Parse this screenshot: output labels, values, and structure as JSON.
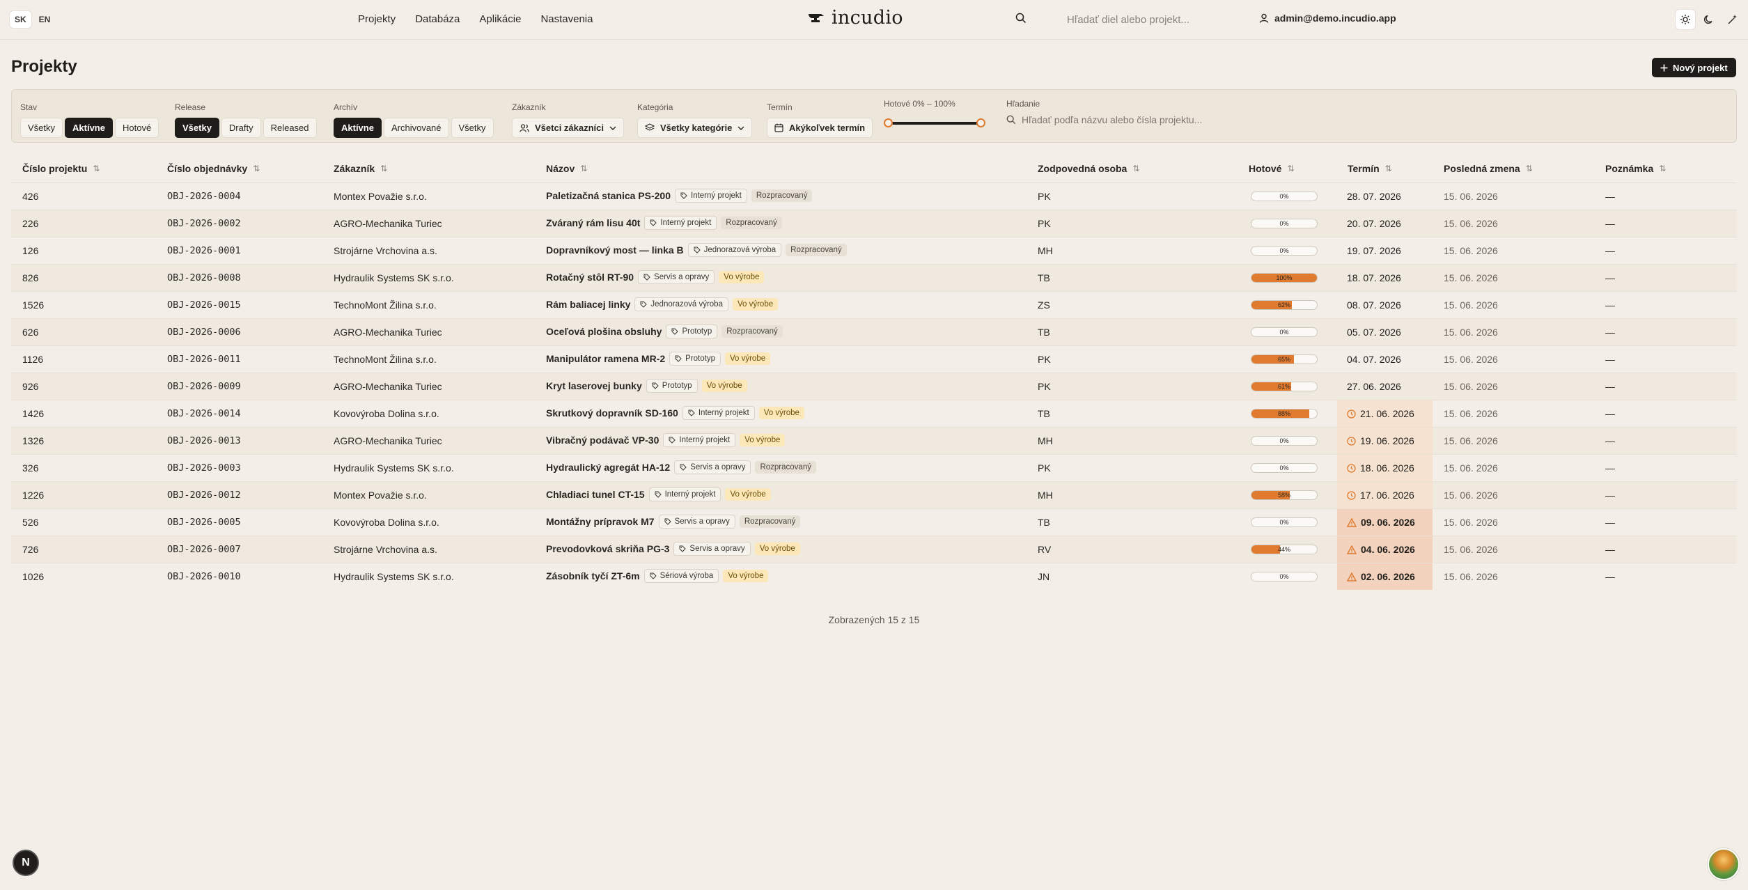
{
  "top": {
    "lang": [
      "SK",
      "EN"
    ],
    "nav": [
      "Projekty",
      "Databáza",
      "Aplikácie",
      "Nastavenia"
    ],
    "brand": "incudio",
    "search_placeholder": "Hľadať diel alebo projekt...",
    "user_email": "admin@demo.incudio.app"
  },
  "page": {
    "title": "Projekty",
    "new_button": "Nový projekt"
  },
  "filters": {
    "stav": {
      "label": "Stav",
      "options": [
        "Všetky",
        "Aktívne",
        "Hotové"
      ],
      "selected": "Aktívne"
    },
    "release": {
      "label": "Release",
      "options": [
        "Všetky",
        "Drafty",
        "Released"
      ],
      "selected": "Všetky"
    },
    "archiv": {
      "label": "Archív",
      "options": [
        "Aktívne",
        "Archivované",
        "Všetky"
      ],
      "selected": "Aktívne"
    },
    "zakaznik": {
      "label": "Zákazník",
      "value": "Všetci zákazníci"
    },
    "kategoria": {
      "label": "Kategória",
      "value": "Všetky kategórie"
    },
    "termin": {
      "label": "Termín",
      "value": "Akýkoľvek termín"
    },
    "hotove": {
      "label": "Hotové 0% – 100%",
      "min": 0,
      "max": 100
    },
    "hladanie": {
      "label": "Hľadanie",
      "placeholder": "Hľadať podľa názvu alebo čísla projektu..."
    }
  },
  "table": {
    "headers": [
      "Číslo projektu",
      "Číslo objednávky",
      "Zákazník",
      "Názov",
      "Zodpovedná osoba",
      "Hotové",
      "Termín",
      "Posledná zmena",
      "Poznámka"
    ],
    "rows": [
      {
        "num": "426",
        "order": "OBJ-2026-0004",
        "customer": "Montex Považie s.r.o.",
        "name": "Paletizačná stanica PS-200",
        "tag": "Interný projekt",
        "status": "Rozpracovaný",
        "person": "PK",
        "done": 0,
        "done_label": "0%",
        "deadline": "28. 07. 2026",
        "deadline_state": "normal",
        "changed": "15. 06. 2026",
        "note": "—"
      },
      {
        "num": "226",
        "order": "OBJ-2026-0002",
        "customer": "AGRO-Mechanika Turiec",
        "name": "Zváraný rám lisu 40t",
        "tag": "Interný projekt",
        "status": "Rozpracovaný",
        "person": "PK",
        "done": 0,
        "done_label": "0%",
        "deadline": "20. 07. 2026",
        "deadline_state": "normal",
        "changed": "15. 06. 2026",
        "note": "—"
      },
      {
        "num": "126",
        "order": "OBJ-2026-0001",
        "customer": "Strojárne Vrchovina a.s.",
        "name": "Dopravníkový most — linka B",
        "tag": "Jednorazová výroba",
        "status": "Rozpracovaný",
        "person": "MH",
        "done": 0,
        "done_label": "0%",
        "deadline": "19. 07. 2026",
        "deadline_state": "normal",
        "changed": "15. 06. 2026",
        "note": "—"
      },
      {
        "num": "826",
        "order": "OBJ-2026-0008",
        "customer": "Hydraulik Systems SK s.r.o.",
        "name": "Rotačný stôl RT-90",
        "tag": "Servis a opravy",
        "status": "Vo výrobe",
        "person": "TB",
        "done": 100,
        "done_label": "100%",
        "deadline": "18. 07. 2026",
        "deadline_state": "normal",
        "changed": "15. 06. 2026",
        "note": "—"
      },
      {
        "num": "1526",
        "order": "OBJ-2026-0015",
        "customer": "TechnoMont Žilina s.r.o.",
        "name": "Rám baliacej linky",
        "tag": "Jednorazová výroba",
        "status": "Vo výrobe",
        "person": "ZS",
        "done": 62,
        "done_label": "62%",
        "deadline": "08. 07. 2026",
        "deadline_state": "normal",
        "changed": "15. 06. 2026",
        "note": "—"
      },
      {
        "num": "626",
        "order": "OBJ-2026-0006",
        "customer": "AGRO-Mechanika Turiec",
        "name": "Oceľová plošina obsluhy",
        "tag": "Prototyp",
        "status": "Rozpracovaný",
        "person": "TB",
        "done": 0,
        "done_label": "0%",
        "deadline": "05. 07. 2026",
        "deadline_state": "normal",
        "changed": "15. 06. 2026",
        "note": "—"
      },
      {
        "num": "1126",
        "order": "OBJ-2026-0011",
        "customer": "TechnoMont Žilina s.r.o.",
        "name": "Manipulátor ramena MR-2",
        "tag": "Prototyp",
        "status": "Vo výrobe",
        "person": "PK",
        "done": 65,
        "done_label": "65%",
        "deadline": "04. 07. 2026",
        "deadline_state": "normal",
        "changed": "15. 06. 2026",
        "note": "—"
      },
      {
        "num": "926",
        "order": "OBJ-2026-0009",
        "customer": "AGRO-Mechanika Turiec",
        "name": "Kryt laserovej bunky",
        "tag": "Prototyp",
        "status": "Vo výrobe",
        "person": "PK",
        "done": 61,
        "done_label": "61%",
        "deadline": "27. 06. 2026",
        "deadline_state": "normal",
        "changed": "15. 06. 2026",
        "note": "—"
      },
      {
        "num": "1426",
        "order": "OBJ-2026-0014",
        "customer": "Kovovýroba Dolina s.r.o.",
        "name": "Skrutkový dopravník SD-160",
        "tag": "Interný projekt",
        "status": "Vo výrobe",
        "person": "TB",
        "done": 88,
        "done_label": "88%",
        "deadline": "21. 06. 2026",
        "deadline_state": "warn",
        "changed": "15. 06. 2026",
        "note": "—"
      },
      {
        "num": "1326",
        "order": "OBJ-2026-0013",
        "customer": "AGRO-Mechanika Turiec",
        "name": "Vibračný podávač VP-30",
        "tag": "Interný projekt",
        "status": "Vo výrobe",
        "person": "MH",
        "done": 0,
        "done_label": "0%",
        "deadline": "19. 06. 2026",
        "deadline_state": "warn",
        "changed": "15. 06. 2026",
        "note": "—"
      },
      {
        "num": "326",
        "order": "OBJ-2026-0003",
        "customer": "Hydraulik Systems SK s.r.o.",
        "name": "Hydraulický agregát HA-12",
        "tag": "Servis a opravy",
        "status": "Rozpracovaný",
        "person": "PK",
        "done": 0,
        "done_label": "0%",
        "deadline": "18. 06. 2026",
        "deadline_state": "warn",
        "changed": "15. 06. 2026",
        "note": "—"
      },
      {
        "num": "1226",
        "order": "OBJ-2026-0012",
        "customer": "Montex Považie s.r.o.",
        "name": "Chladiaci tunel CT-15",
        "tag": "Interný projekt",
        "status": "Vo výrobe",
        "person": "MH",
        "done": 58,
        "done_label": "58%",
        "deadline": "17. 06. 2026",
        "deadline_state": "warn",
        "changed": "15. 06. 2026",
        "note": "—"
      },
      {
        "num": "526",
        "order": "OBJ-2026-0005",
        "customer": "Kovovýroba Dolina s.r.o.",
        "name": "Montážny prípravok M7",
        "tag": "Servis a opravy",
        "status": "Rozpracovaný",
        "person": "TB",
        "done": 0,
        "done_label": "0%",
        "deadline": "09. 06. 2026",
        "deadline_state": "late",
        "changed": "15. 06. 2026",
        "note": "—"
      },
      {
        "num": "726",
        "order": "OBJ-2026-0007",
        "customer": "Strojárne Vrchovina a.s.",
        "name": "Prevodovková skriňa PG-3",
        "tag": "Servis a opravy",
        "status": "Vo výrobe",
        "person": "RV",
        "done": 44,
        "done_label": "44%",
        "deadline": "04. 06. 2026",
        "deadline_state": "late",
        "changed": "15. 06. 2026",
        "note": "—"
      },
      {
        "num": "1026",
        "order": "OBJ-2026-0010",
        "customer": "Hydraulik Systems SK s.r.o.",
        "name": "Zásobník tyčí ZT-6m",
        "tag": "Sériová výroba",
        "status": "Vo výrobe",
        "person": "JN",
        "done": 0,
        "done_label": "0%",
        "deadline": "02. 06. 2026",
        "deadline_state": "late",
        "changed": "15. 06. 2026",
        "note": "—"
      }
    ]
  },
  "footer": {
    "count": "Zobrazených 15 z 15"
  },
  "badge": {
    "letter": "N"
  },
  "colors": {
    "accent": "#e07a2e",
    "dark": "#1f1d1a",
    "bg": "#f3efe8"
  }
}
